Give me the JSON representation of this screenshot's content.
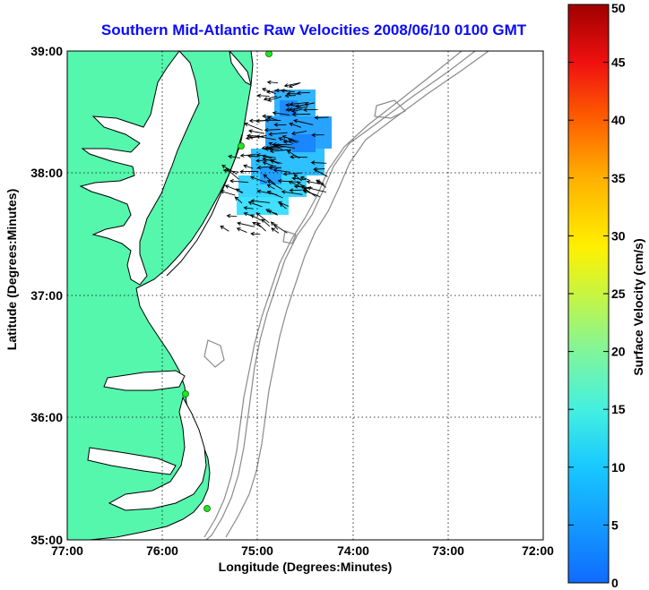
{
  "title": "Southern Mid-Atlantic Raw Velocities 2008/06/10 0100 GMT",
  "axes": {
    "x_label": "Longitude (Degrees:Minutes)",
    "y_label": "Latitude (Degrees:Minutes)",
    "x_ticks": [
      "77:00",
      "76:00",
      "75:00",
      "74:00",
      "73:00",
      "72:00"
    ],
    "y_ticks": [
      "39:00",
      "38:00",
      "37:00",
      "36:00",
      "35:00"
    ]
  },
  "colorbar": {
    "label": "Surface Velocity (cm/s)",
    "ticks": [
      "50",
      "45",
      "40",
      "35",
      "30",
      "25",
      "20",
      "15",
      "10",
      "5",
      "0"
    ],
    "min": 0,
    "max": 50
  },
  "colors": {
    "land": "#55f7ad",
    "water": "#ffffff",
    "coastline": "#000000",
    "bathymetry": "#8a8a8a",
    "title": "#0a0aff",
    "station": "#22e622"
  },
  "map": {
    "lon_range": [
      -77.0,
      -72.0
    ],
    "lat_range": [
      35.0,
      39.0
    ],
    "grid": true
  },
  "icons": [
    "station-marker-icon",
    "velocity-arrow-icon"
  ]
}
